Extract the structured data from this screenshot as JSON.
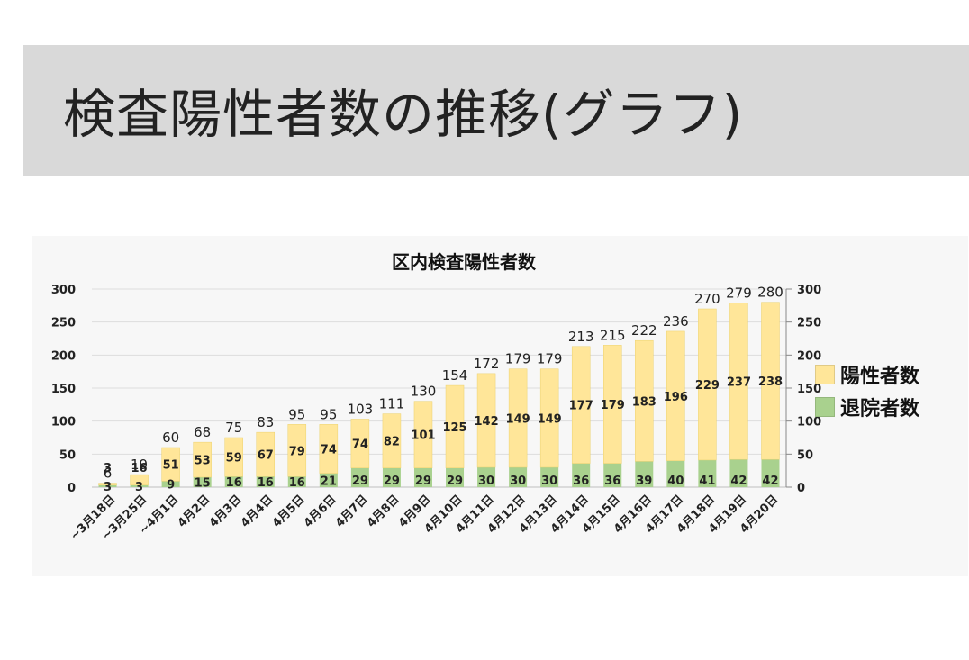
{
  "slide": {
    "title": "検査陽性者数の推移(グラフ)"
  },
  "chart_data": {
    "type": "bar",
    "stacked": true,
    "title": "区内検査陽性者数",
    "categories": [
      "~3月18日",
      "~3月25日",
      "~4月1日",
      "4月2日",
      "4月3日",
      "4月4日",
      "4月5日",
      "4月6日",
      "4月7日",
      "4月8日",
      "4月9日",
      "4月10日",
      "4月11日",
      "4月12日",
      "4月13日",
      "4月14日",
      "4月15日",
      "4月16日",
      "4月17日",
      "4月18日",
      "4月19日",
      "4月20日"
    ],
    "series": [
      {
        "name": "退院者数",
        "color": "#a9d18e",
        "values": [
          3,
          3,
          9,
          15,
          16,
          16,
          16,
          21,
          29,
          29,
          29,
          29,
          30,
          30,
          30,
          36,
          36,
          39,
          40,
          41,
          42,
          42
        ]
      },
      {
        "name": "陽性者数",
        "color": "#ffe699",
        "values": [
          3,
          16,
          51,
          53,
          59,
          67,
          79,
          74,
          74,
          82,
          101,
          125,
          142,
          149,
          149,
          177,
          179,
          183,
          196,
          229,
          237,
          238
        ]
      }
    ],
    "totals": [
      6,
      19,
      60,
      68,
      75,
      83,
      95,
      95,
      103,
      111,
      130,
      154,
      172,
      179,
      179,
      213,
      215,
      222,
      236,
      270,
      279,
      280
    ],
    "y_ticks": [
      0,
      50,
      100,
      150,
      200,
      250,
      300
    ],
    "ylim": [
      0,
      300
    ],
    "secondary_axis": true,
    "grid": true,
    "legend_position": "right"
  }
}
